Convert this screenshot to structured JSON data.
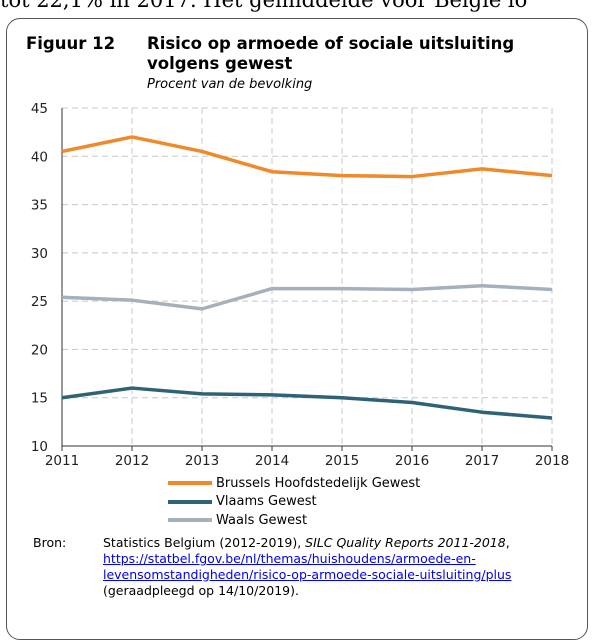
{
  "top_text": "tot 22,1% in 2017. Het gemiddelde voor België lo",
  "figure": {
    "label": "Figuur 12",
    "title": "Risico op armoede of sociale uitsluiting volgens gewest",
    "subtitle": "Procent van de bevolking"
  },
  "chart_data": {
    "type": "line",
    "title": "Risico op armoede of sociale uitsluiting volgens gewest",
    "subtitle": "Procent van de bevolking",
    "x": [
      2011,
      2012,
      2013,
      2014,
      2015,
      2016,
      2017,
      2018
    ],
    "ylim": [
      10,
      45
    ],
    "yticks": [
      10,
      15,
      20,
      25,
      30,
      35,
      40,
      45
    ],
    "grid": true,
    "legend_position": "bottom",
    "series": [
      {
        "name": "Brussels Hoofdstedelijk Gewest",
        "color": "#f0892a",
        "values": [
          40.5,
          42.0,
          40.5,
          38.4,
          38.0,
          37.9,
          38.7,
          38.0
        ]
      },
      {
        "name": "Vlaams Gewest",
        "color": "#2e6377",
        "values": [
          15.0,
          16.0,
          15.4,
          15.3,
          15.0,
          14.5,
          13.5,
          12.9
        ]
      },
      {
        "name": "Waals Gewest",
        "color": "#a5b0bd",
        "values": [
          25.4,
          25.1,
          24.2,
          26.3,
          26.3,
          26.2,
          26.6,
          26.2
        ]
      }
    ]
  },
  "source": {
    "label": "Bron:",
    "text_before": "Statistics Belgium (2012-2019), ",
    "italic": "SILC Quality Reports 2011-2018",
    "text_after_italic": ",",
    "link": "https://statbel.fgov.be/nl/themas/huishoudens/armoede-en-levensomstandigheden/risico-op-armoede-sociale-uitsluiting/plus",
    "text_end": " (geraadpleegd op 14/10/2019)."
  }
}
